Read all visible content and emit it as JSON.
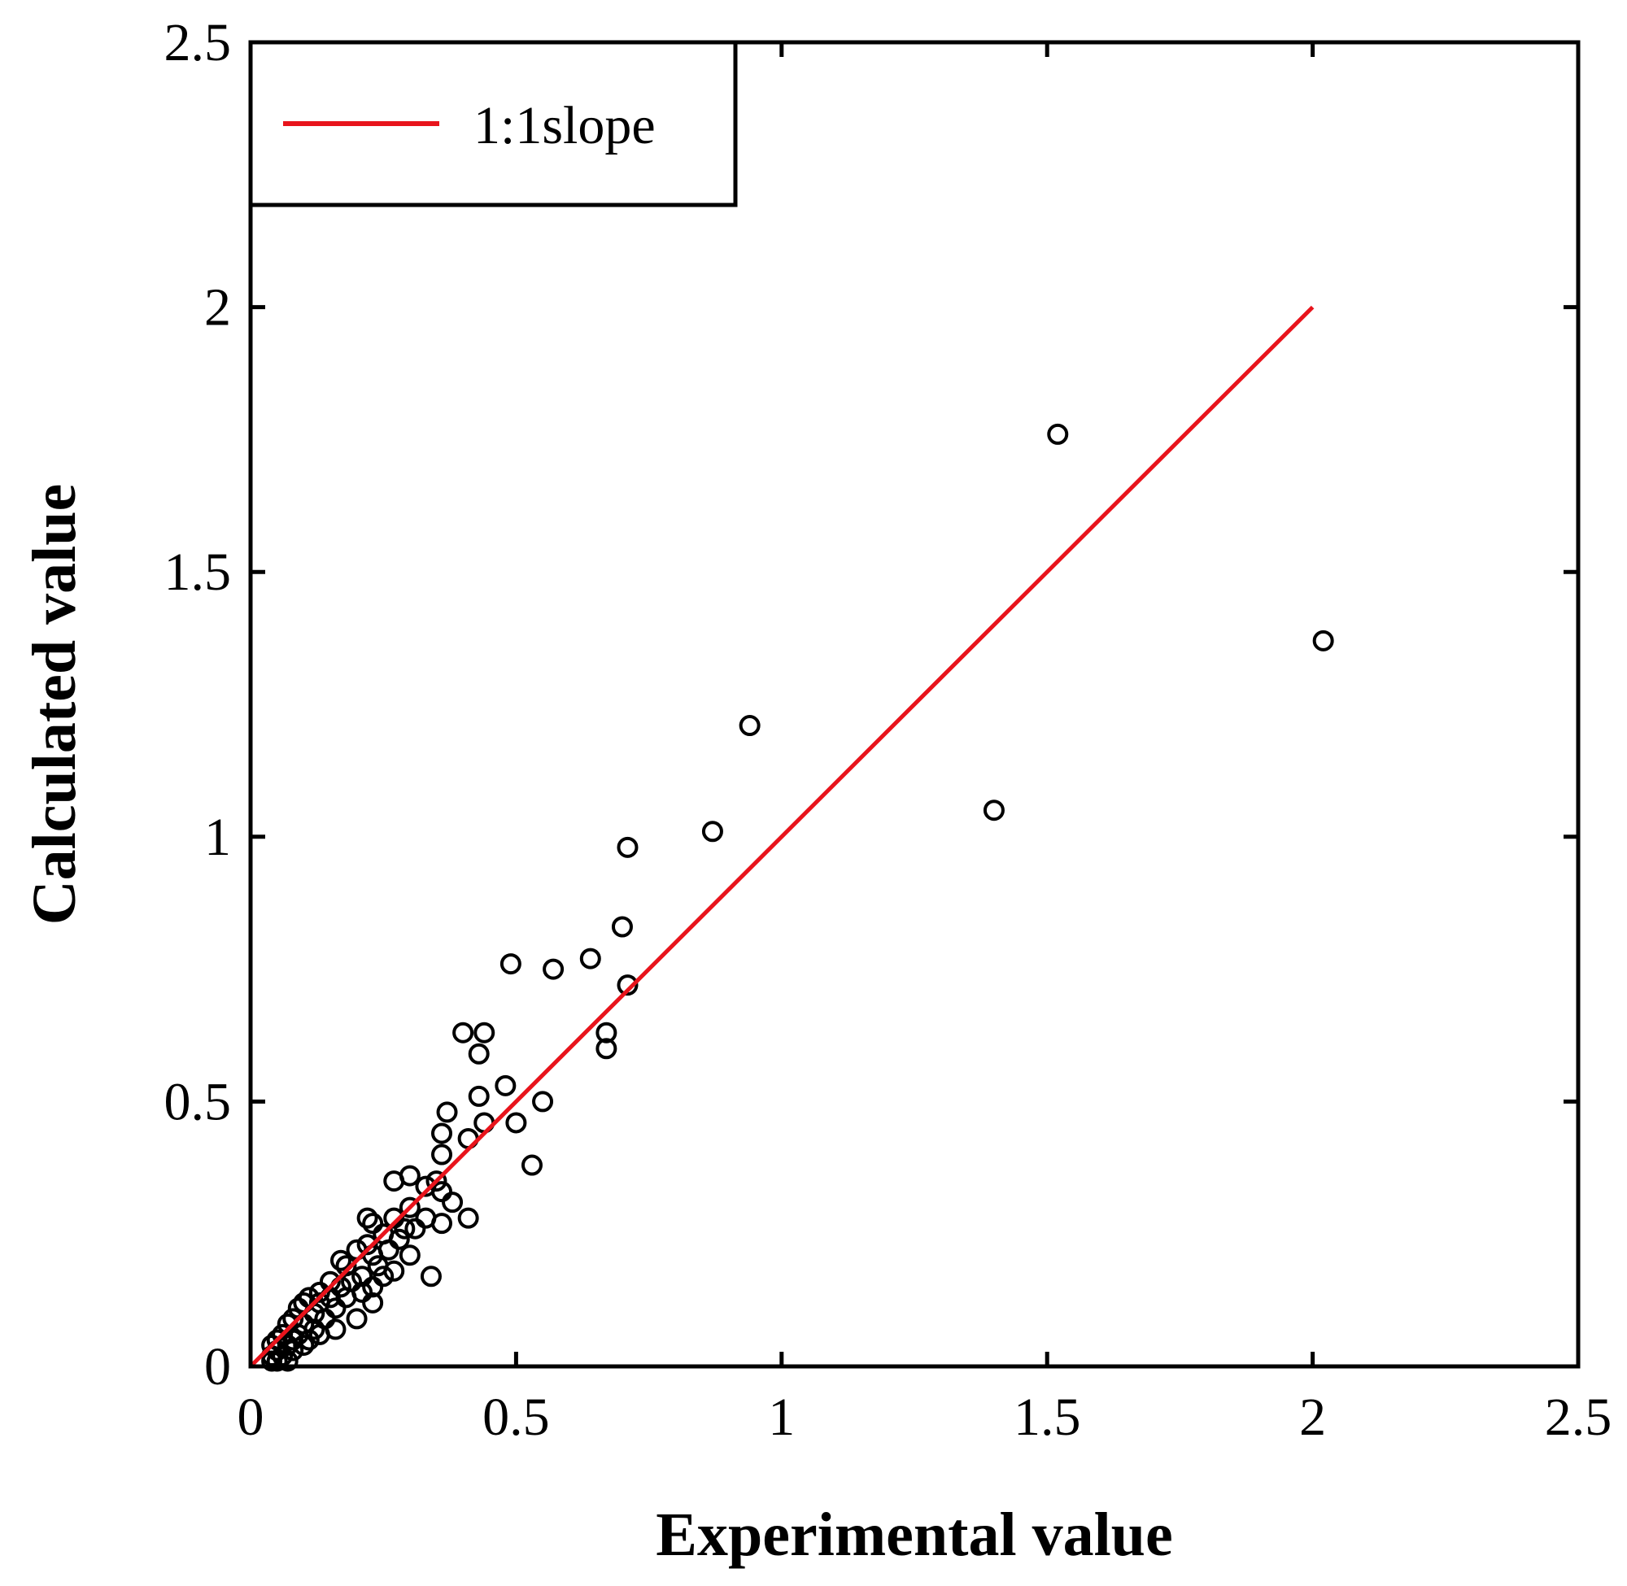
{
  "chart_data": {
    "type": "scatter",
    "xlabel": "Experimental value",
    "ylabel": "Calculated value",
    "xlim": [
      0,
      2.5
    ],
    "ylim": [
      0,
      2.5
    ],
    "x_ticks": [
      0,
      0.5,
      1,
      1.5,
      2,
      2.5
    ],
    "y_ticks": [
      0,
      0.5,
      1,
      1.5,
      2,
      2.5
    ],
    "x_tick_labels": [
      "0",
      "0.5",
      "1",
      "1.5",
      "2",
      "2.5"
    ],
    "y_tick_labels": [
      "0",
      "0.5",
      "1",
      "1.5",
      "2",
      "2.5"
    ],
    "grid": false,
    "legend": {
      "position": "top-left",
      "entries": [
        {
          "label": "1:1slope",
          "color": "#e8141c",
          "marker": "line"
        }
      ]
    },
    "series": [
      {
        "marker": "open-circle",
        "color": "#000000",
        "points": [
          [
            2.02,
            1.37
          ],
          [
            1.52,
            1.76
          ],
          [
            1.4,
            1.05
          ],
          [
            0.94,
            1.21
          ],
          [
            0.87,
            1.01
          ],
          [
            0.71,
            0.98
          ],
          [
            0.7,
            0.83
          ],
          [
            0.71,
            0.72
          ],
          [
            0.64,
            0.77
          ],
          [
            0.49,
            0.76
          ],
          [
            0.57,
            0.75
          ],
          [
            0.67,
            0.63
          ],
          [
            0.67,
            0.6
          ],
          [
            0.4,
            0.63
          ],
          [
            0.44,
            0.63
          ],
          [
            0.43,
            0.59
          ],
          [
            0.48,
            0.53
          ],
          [
            0.43,
            0.51
          ],
          [
            0.55,
            0.5
          ],
          [
            0.37,
            0.48
          ],
          [
            0.5,
            0.46
          ],
          [
            0.44,
            0.46
          ],
          [
            0.36,
            0.44
          ],
          [
            0.41,
            0.43
          ],
          [
            0.36,
            0.4
          ],
          [
            0.53,
            0.38
          ],
          [
            0.35,
            0.35
          ],
          [
            0.3,
            0.36
          ],
          [
            0.27,
            0.35
          ],
          [
            0.33,
            0.34
          ],
          [
            0.36,
            0.33
          ],
          [
            0.38,
            0.31
          ],
          [
            0.3,
            0.3
          ],
          [
            0.33,
            0.28
          ],
          [
            0.41,
            0.28
          ],
          [
            0.36,
            0.27
          ],
          [
            0.22,
            0.28
          ],
          [
            0.23,
            0.27
          ],
          [
            0.27,
            0.28
          ],
          [
            0.29,
            0.26
          ],
          [
            0.31,
            0.26
          ],
          [
            0.25,
            0.25
          ],
          [
            0.28,
            0.24
          ],
          [
            0.22,
            0.23
          ],
          [
            0.26,
            0.22
          ],
          [
            0.2,
            0.22
          ],
          [
            0.3,
            0.21
          ],
          [
            0.23,
            0.21
          ],
          [
            0.17,
            0.2
          ],
          [
            0.24,
            0.19
          ],
          [
            0.18,
            0.19
          ],
          [
            0.27,
            0.18
          ],
          [
            0.34,
            0.17
          ],
          [
            0.21,
            0.17
          ],
          [
            0.25,
            0.17
          ],
          [
            0.15,
            0.16
          ],
          [
            0.19,
            0.16
          ],
          [
            0.17,
            0.15
          ],
          [
            0.23,
            0.15
          ],
          [
            0.13,
            0.14
          ],
          [
            0.21,
            0.14
          ],
          [
            0.11,
            0.13
          ],
          [
            0.15,
            0.13
          ],
          [
            0.18,
            0.13
          ],
          [
            0.23,
            0.12
          ],
          [
            0.1,
            0.12
          ],
          [
            0.13,
            0.12
          ],
          [
            0.16,
            0.11
          ],
          [
            0.09,
            0.11
          ],
          [
            0.12,
            0.1
          ],
          [
            0.08,
            0.09
          ],
          [
            0.14,
            0.09
          ],
          [
            0.2,
            0.09
          ],
          [
            0.1,
            0.08
          ],
          [
            0.07,
            0.08
          ],
          [
            0.12,
            0.07
          ],
          [
            0.16,
            0.07
          ],
          [
            0.06,
            0.06
          ],
          [
            0.09,
            0.06
          ],
          [
            0.13,
            0.06
          ],
          [
            0.05,
            0.05
          ],
          [
            0.08,
            0.05
          ],
          [
            0.11,
            0.05
          ],
          [
            0.04,
            0.04
          ],
          [
            0.07,
            0.04
          ],
          [
            0.1,
            0.04
          ],
          [
            0.05,
            0.03
          ],
          [
            0.08,
            0.03
          ],
          [
            0.04,
            0.02
          ],
          [
            0.06,
            0.02
          ],
          [
            0.05,
            0.01
          ],
          [
            0.07,
            0.01
          ],
          [
            0.04,
            0.01
          ]
        ]
      },
      {
        "name": "1:1slope",
        "type": "line",
        "color": "#e8141c",
        "x": [
          0,
          2
        ],
        "y": [
          0,
          2
        ]
      }
    ]
  }
}
